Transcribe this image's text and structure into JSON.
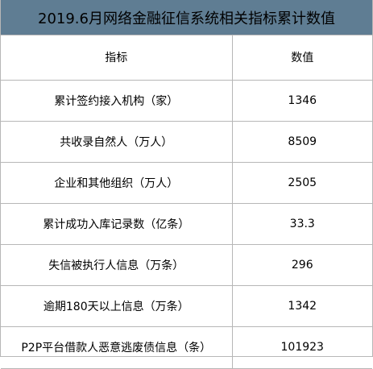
{
  "title": "2019.6月网络金融征信系统相关指标累计数值",
  "header": {
    "indicator": "指标",
    "value": "数值"
  },
  "rows": [
    {
      "indicator": "累计签约接入机构（家）",
      "value": "1346"
    },
    {
      "indicator": "共收录自然人（万人）",
      "value": "8509"
    },
    {
      "indicator": "企业和其他组织（万人）",
      "value": "2505"
    },
    {
      "indicator": "累计成功入库记录数（亿条）",
      "value": "33.3"
    },
    {
      "indicator": "失信被执行人信息（万条）",
      "value": "296"
    },
    {
      "indicator": "逾期180天以上信息（万条）",
      "value": "1342"
    },
    {
      "indicator": "P2P平台借款人恶意逃废债信息（条）",
      "value": "101923"
    }
  ],
  "colors": {
    "title_background": "#5f7d93",
    "grid_line": "#b7b7b7"
  }
}
